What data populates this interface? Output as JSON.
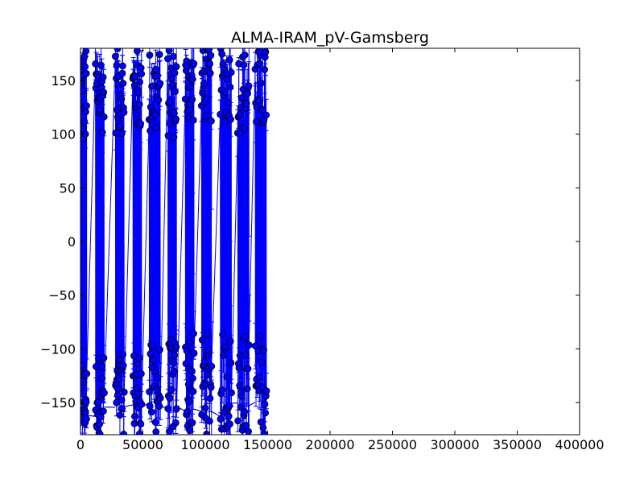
{
  "chart_data": {
    "type": "scatter",
    "title": "ALMA-IRAM_pV-Gamsberg",
    "xlabel": "",
    "ylabel": "",
    "xlim": [
      0,
      400000
    ],
    "ylim": [
      -180,
      180
    ],
    "x_ticks": [
      0,
      50000,
      100000,
      150000,
      200000,
      250000,
      300000,
      350000,
      400000
    ],
    "y_ticks": [
      -150,
      -100,
      -50,
      0,
      50,
      100,
      150
    ],
    "x_tick_labels": [
      "0",
      "50000",
      "100000",
      "150000",
      "200000",
      "250000",
      "300000",
      "350000",
      "400000"
    ],
    "y_tick_labels": [
      "−150",
      "−100",
      "−50",
      "0",
      "50",
      "100",
      "150"
    ],
    "grid": false,
    "marker_color": "#0000ff",
    "marker_edge": "#000000",
    "scans": [
      {
        "x": [
          0,
          5000
        ],
        "upper": [
          85,
          180
        ],
        "lower": [
          -180,
          -115
        ]
      },
      {
        "x": [
          12000,
          19000
        ],
        "upper": [
          100,
          180
        ],
        "lower": [
          -180,
          -105
        ]
      },
      {
        "x": [
          28000,
          35000
        ],
        "upper": [
          100,
          180
        ],
        "lower": [
          -180,
          -105
        ]
      },
      {
        "x": [
          42000,
          49000
        ],
        "upper": [
          100,
          180
        ],
        "lower": [
          -180,
          -100
        ]
      },
      {
        "x": [
          55000,
          64000
        ],
        "upper": [
          95,
          180
        ],
        "lower": [
          -180,
          -95
        ]
      },
      {
        "x": [
          70000,
          77000
        ],
        "upper": [
          95,
          180
        ],
        "lower": [
          -180,
          -90
        ]
      },
      {
        "x": [
          84000,
          91000
        ],
        "upper": [
          110,
          180
        ],
        "lower": [
          -180,
          -85
        ]
      },
      {
        "x": [
          97000,
          105000
        ],
        "upper": [
          110,
          180
        ],
        "lower": [
          -180,
          -85
        ]
      },
      {
        "x": [
          112000,
          121000
        ],
        "upper": [
          110,
          180
        ],
        "lower": [
          -180,
          -85
        ]
      },
      {
        "x": [
          126000,
          135000
        ],
        "upper": [
          100,
          180
        ],
        "lower": [
          -180,
          -85
        ]
      },
      {
        "x": [
          140000,
          149000
        ],
        "upper": [
          100,
          180
        ],
        "lower": [
          -180,
          -85
        ]
      }
    ],
    "spikes": [
      {
        "x": 90000,
        "top": 45,
        "bottom": -30
      },
      {
        "x": 105000,
        "top": 30,
        "bottom": -75
      },
      {
        "x": 120000,
        "top": 0,
        "bottom": -60
      },
      {
        "x": 135000,
        "top": 5,
        "bottom": -50
      },
      {
        "x": 146000,
        "top": 120,
        "bottom": -80
      }
    ]
  }
}
